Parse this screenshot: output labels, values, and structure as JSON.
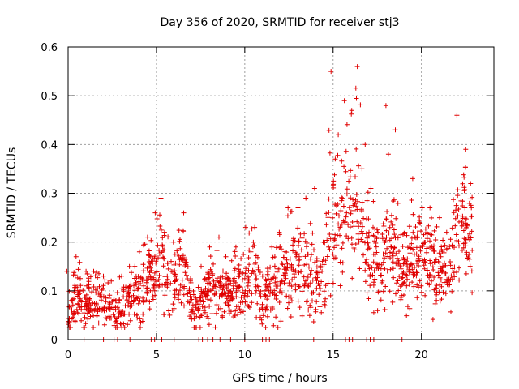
{
  "chart_data": {
    "type": "scatter",
    "title": "Day 356 of 2020, SRMTID for receiver stj3",
    "xlabel": "GPS time / hours",
    "ylabel": "SRMTID / TECUs",
    "xlim": [
      0,
      24.1
    ],
    "ylim": [
      0,
      0.6
    ],
    "xticks": [
      0,
      5,
      10,
      15,
      20
    ],
    "xtick_labels": [
      "0",
      "5",
      "10",
      "15",
      "20"
    ],
    "yticks": [
      0,
      0.1,
      0.2,
      0.3,
      0.4,
      0.5,
      0.6
    ],
    "ytick_labels": [
      "0",
      "0.1",
      "0.2",
      "0.3",
      "0.4",
      "0.5",
      "0.6"
    ],
    "grid": true,
    "marker": "+",
    "color": "#e00000",
    "zero_points_x": [
      0.9,
      2.0,
      2.6,
      2.8,
      3.5,
      4.7,
      4.9,
      5.3,
      6.0,
      7.4,
      7.6,
      7.9,
      8.2,
      8.6,
      9.2,
      10.0,
      11.0,
      11.2,
      11.4,
      13.9,
      15.7,
      15.9,
      16.1,
      16.9,
      17.1,
      17.3,
      18.9
    ],
    "envelope": [
      {
        "x": 0.0,
        "base": 0.06,
        "spread": 0.05,
        "peak": 0.14
      },
      {
        "x": 0.5,
        "base": 0.1,
        "spread": 0.06,
        "peak": 0.17
      },
      {
        "x": 1.0,
        "base": 0.07,
        "spread": 0.05,
        "peak": 0.14
      },
      {
        "x": 1.5,
        "base": 0.08,
        "spread": 0.05,
        "peak": 0.14
      },
      {
        "x": 2.0,
        "base": 0.07,
        "spread": 0.05,
        "peak": 0.13
      },
      {
        "x": 2.5,
        "base": 0.06,
        "spread": 0.04,
        "peak": 0.12
      },
      {
        "x": 3.0,
        "base": 0.07,
        "spread": 0.05,
        "peak": 0.13
      },
      {
        "x": 3.5,
        "base": 0.08,
        "spread": 0.05,
        "peak": 0.15
      },
      {
        "x": 4.0,
        "base": 0.09,
        "spread": 0.06,
        "peak": 0.18
      },
      {
        "x": 4.5,
        "base": 0.12,
        "spread": 0.07,
        "peak": 0.21
      },
      {
        "x": 5.0,
        "base": 0.15,
        "spread": 0.08,
        "peak": 0.26
      },
      {
        "x": 5.3,
        "base": 0.18,
        "spread": 0.09,
        "peak": 0.29
      },
      {
        "x": 5.5,
        "base": 0.13,
        "spread": 0.07,
        "peak": 0.22
      },
      {
        "x": 6.0,
        "base": 0.12,
        "spread": 0.06,
        "peak": 0.2
      },
      {
        "x": 6.5,
        "base": 0.15,
        "spread": 0.08,
        "peak": 0.26
      },
      {
        "x": 7.0,
        "base": 0.06,
        "spread": 0.04,
        "peak": 0.12
      },
      {
        "x": 7.5,
        "base": 0.08,
        "spread": 0.05,
        "peak": 0.15
      },
      {
        "x": 8.0,
        "base": 0.11,
        "spread": 0.06,
        "peak": 0.19
      },
      {
        "x": 8.5,
        "base": 0.1,
        "spread": 0.06,
        "peak": 0.21
      },
      {
        "x": 9.0,
        "base": 0.09,
        "spread": 0.05,
        "peak": 0.17
      },
      {
        "x": 9.5,
        "base": 0.1,
        "spread": 0.06,
        "peak": 0.19
      },
      {
        "x": 10.0,
        "base": 0.12,
        "spread": 0.06,
        "peak": 0.23
      },
      {
        "x": 10.5,
        "base": 0.14,
        "spread": 0.07,
        "peak": 0.23
      },
      {
        "x": 11.0,
        "base": 0.07,
        "spread": 0.05,
        "peak": 0.13
      },
      {
        "x": 11.5,
        "base": 0.11,
        "spread": 0.06,
        "peak": 0.19
      },
      {
        "x": 12.0,
        "base": 0.13,
        "spread": 0.07,
        "peak": 0.22
      },
      {
        "x": 12.5,
        "base": 0.14,
        "spread": 0.08,
        "peak": 0.27
      },
      {
        "x": 13.0,
        "base": 0.15,
        "spread": 0.08,
        "peak": 0.27
      },
      {
        "x": 13.5,
        "base": 0.14,
        "spread": 0.08,
        "peak": 0.29
      },
      {
        "x": 14.0,
        "base": 0.14,
        "spread": 0.08,
        "peak": 0.31
      },
      {
        "x": 14.5,
        "base": 0.13,
        "spread": 0.07,
        "peak": 0.2
      },
      {
        "x": 14.9,
        "base": 0.28,
        "spread": 0.14,
        "peak": 0.55
      },
      {
        "x": 15.3,
        "base": 0.22,
        "spread": 0.11,
        "peak": 0.42
      },
      {
        "x": 15.7,
        "base": 0.25,
        "spread": 0.12,
        "peak": 0.49
      },
      {
        "x": 16.0,
        "base": 0.26,
        "spread": 0.13,
        "peak": 0.47
      },
      {
        "x": 16.4,
        "base": 0.28,
        "spread": 0.14,
        "peak": 0.56
      },
      {
        "x": 16.8,
        "base": 0.22,
        "spread": 0.11,
        "peak": 0.4
      },
      {
        "x": 17.2,
        "base": 0.18,
        "spread": 0.09,
        "peak": 0.31
      },
      {
        "x": 17.6,
        "base": 0.13,
        "spread": 0.07,
        "peak": 0.22
      },
      {
        "x": 18.0,
        "base": 0.2,
        "spread": 0.11,
        "peak": 0.48
      },
      {
        "x": 18.5,
        "base": 0.18,
        "spread": 0.1,
        "peak": 0.43
      },
      {
        "x": 19.0,
        "base": 0.13,
        "spread": 0.07,
        "peak": 0.22
      },
      {
        "x": 19.5,
        "base": 0.16,
        "spread": 0.08,
        "peak": 0.33
      },
      {
        "x": 20.0,
        "base": 0.17,
        "spread": 0.08,
        "peak": 0.27
      },
      {
        "x": 20.5,
        "base": 0.17,
        "spread": 0.08,
        "peak": 0.27
      },
      {
        "x": 21.0,
        "base": 0.16,
        "spread": 0.08,
        "peak": 0.25
      },
      {
        "x": 21.5,
        "base": 0.12,
        "spread": 0.06,
        "peak": 0.22
      },
      {
        "x": 22.0,
        "base": 0.2,
        "spread": 0.11,
        "peak": 0.46
      },
      {
        "x": 22.5,
        "base": 0.24,
        "spread": 0.11,
        "peak": 0.39
      },
      {
        "x": 22.8,
        "base": 0.2,
        "spread": 0.09,
        "peak": 0.32
      }
    ],
    "n_points": 1500,
    "x_end": 22.9
  }
}
